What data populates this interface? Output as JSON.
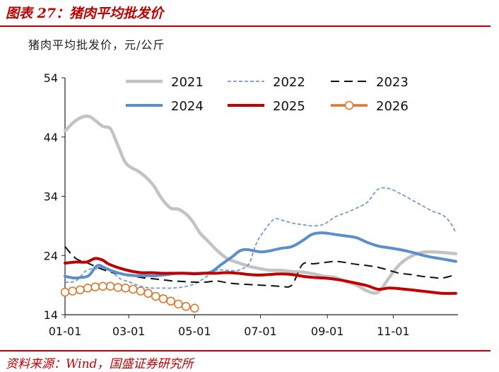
{
  "header": {
    "title": "图表 27：猪肉平均批发价"
  },
  "footer": {
    "source": "资料来源：Wind，国盛证券研究所"
  },
  "colors": {
    "brand_red": "#c00000",
    "s2021": "#c3c3c3",
    "s2022": "#6f9bd1",
    "s2023": "#111111",
    "s2024": "#5b8fc9",
    "s2025": "#c00000",
    "s2026": "#d9782d"
  },
  "chart_data": {
    "type": "line",
    "title": "猪肉平均批发价",
    "ylabel": "猪肉平均批发价，元/公斤",
    "xlabel": "",
    "ylim": [
      14,
      54
    ],
    "yticks": [
      14,
      24,
      34,
      44,
      54
    ],
    "xlim": [
      0,
      364
    ],
    "xticks": [
      {
        "label": "01-01",
        "day": 0
      },
      {
        "label": "03-01",
        "day": 59
      },
      {
        "label": "05-01",
        "day": 120
      },
      {
        "label": "07-01",
        "day": 181
      },
      {
        "label": "09-01",
        "day": 243
      },
      {
        "label": "11-01",
        "day": 304
      }
    ],
    "legend": "top, 3 columns",
    "series": [
      {
        "name": "2021",
        "style": "solid-thick",
        "x": [
          0,
          8,
          15,
          22,
          28,
          35,
          42,
          48,
          55,
          60,
          68,
          75,
          82,
          90,
          98,
          105,
          112,
          118,
          125,
          132,
          140,
          150,
          160,
          170,
          180,
          190,
          200,
          210,
          220,
          230,
          240,
          250,
          260,
          270,
          280,
          290,
          300,
          310,
          320,
          330,
          340,
          350,
          362
        ],
        "y": [
          45,
          46.5,
          47.3,
          47.5,
          46.8,
          45.8,
          45.4,
          43,
          40,
          39,
          38.2,
          37.2,
          35.8,
          33.5,
          32,
          31.8,
          31,
          29.8,
          27.8,
          26.5,
          25,
          23.5,
          22.8,
          22.2,
          21.8,
          21.5,
          21.5,
          21.3,
          21.2,
          20.9,
          20.5,
          20.3,
          19.6,
          19,
          18,
          17.8,
          20.2,
          22.5,
          23.8,
          24.5,
          24.6,
          24.5,
          24.3
        ]
      },
      {
        "name": "2022",
        "style": "dashed-thin",
        "x": [
          0,
          10,
          20,
          30,
          40,
          50,
          60,
          70,
          80,
          90,
          100,
          110,
          120,
          130,
          140,
          150,
          160,
          170,
          175,
          180,
          190,
          195,
          200,
          210,
          220,
          230,
          240,
          250,
          260,
          270,
          280,
          290,
          300,
          310,
          320,
          330,
          340,
          350,
          357,
          362
        ],
        "y": [
          19.5,
          19.7,
          21.5,
          21.8,
          21.8,
          20.2,
          19.5,
          18.8,
          18.5,
          18.5,
          18.5,
          18.7,
          19.2,
          20.3,
          21.5,
          21.5,
          21.5,
          22.5,
          25,
          27,
          29.5,
          30.2,
          30.0,
          29.5,
          29.2,
          29.0,
          29.3,
          30.5,
          31.2,
          32,
          33,
          35.2,
          35.3,
          34.5,
          33.5,
          32.5,
          31.5,
          30.8,
          29.5,
          27.8
        ]
      },
      {
        "name": "2023",
        "style": "dashed-thick",
        "x": [
          0,
          10,
          20,
          30,
          40,
          50,
          60,
          70,
          80,
          90,
          100,
          110,
          120,
          130,
          140,
          150,
          160,
          170,
          180,
          190,
          200,
          210,
          220,
          230,
          240,
          250,
          260,
          270,
          280,
          290,
          300,
          310,
          320,
          330,
          340,
          350,
          362
        ],
        "y": [
          25.5,
          23.5,
          22.8,
          22,
          21.3,
          20.9,
          20.6,
          20.3,
          20.1,
          19.9,
          19.7,
          19.6,
          19.5,
          19.5,
          19.7,
          19.4,
          19.2,
          19.1,
          19.0,
          18.9,
          18.8,
          19.0,
          22.5,
          22.6,
          22.8,
          23.0,
          22.8,
          22.5,
          22.3,
          22.0,
          21.5,
          21.0,
          20.8,
          20.5,
          20.3,
          20.2,
          20.8
        ]
      },
      {
        "name": "2024",
        "style": "solid-thick",
        "x": [
          0,
          8,
          15,
          22,
          30,
          38,
          45,
          55,
          65,
          75,
          85,
          95,
          105,
          115,
          125,
          135,
          145,
          155,
          162,
          168,
          175,
          182,
          190,
          200,
          210,
          220,
          228,
          235,
          240,
          245,
          252,
          260,
          270,
          280,
          290,
          300,
          310,
          320,
          330,
          340,
          350,
          362
        ],
        "y": [
          20.5,
          20.2,
          20.3,
          20.6,
          22.3,
          21.8,
          21.3,
          20.8,
          20.6,
          20.6,
          20.6,
          20.8,
          21.0,
          21.0,
          21.0,
          21.2,
          22.5,
          23.8,
          24.8,
          25.0,
          24.8,
          24.6,
          24.8,
          25.2,
          25.5,
          26.5,
          27.5,
          27.8,
          27.8,
          27.7,
          27.5,
          27.3,
          27.0,
          26.2,
          25.6,
          25.3,
          25.0,
          24.6,
          24.1,
          23.7,
          23.4,
          23.0
        ]
      },
      {
        "name": "2025",
        "style": "solid-thick",
        "x": [
          0,
          10,
          20,
          28,
          35,
          40,
          50,
          60,
          70,
          80,
          90,
          100,
          110,
          120,
          130,
          140,
          150,
          160,
          170,
          180,
          190,
          200,
          210,
          220,
          230,
          240,
          250,
          260,
          270,
          280,
          290,
          300,
          310,
          320,
          330,
          340,
          350,
          362
        ],
        "y": [
          22.7,
          22.9,
          22.9,
          23.5,
          23.2,
          22.6,
          21.9,
          21.4,
          21.1,
          21.1,
          21.0,
          21.0,
          21.0,
          20.9,
          21.0,
          21.0,
          21.1,
          21.0,
          20.8,
          20.7,
          20.8,
          20.9,
          20.8,
          20.5,
          20.3,
          20.2,
          20.0,
          19.7,
          19.3,
          18.9,
          18.3,
          18.5,
          18.4,
          18.2,
          18.0,
          17.8,
          17.6,
          17.6
        ]
      },
      {
        "name": "2026",
        "style": "solid-markers",
        "x": [
          0,
          7,
          14,
          21,
          28,
          35,
          42,
          49,
          56,
          63,
          70,
          77,
          84,
          91,
          98,
          105,
          112,
          120
        ],
        "y": [
          17.8,
          18.0,
          18.2,
          18.5,
          18.7,
          18.8,
          18.8,
          18.6,
          18.5,
          18.3,
          18.0,
          17.6,
          17.1,
          16.7,
          16.3,
          15.8,
          15.4,
          15.1
        ]
      }
    ]
  }
}
